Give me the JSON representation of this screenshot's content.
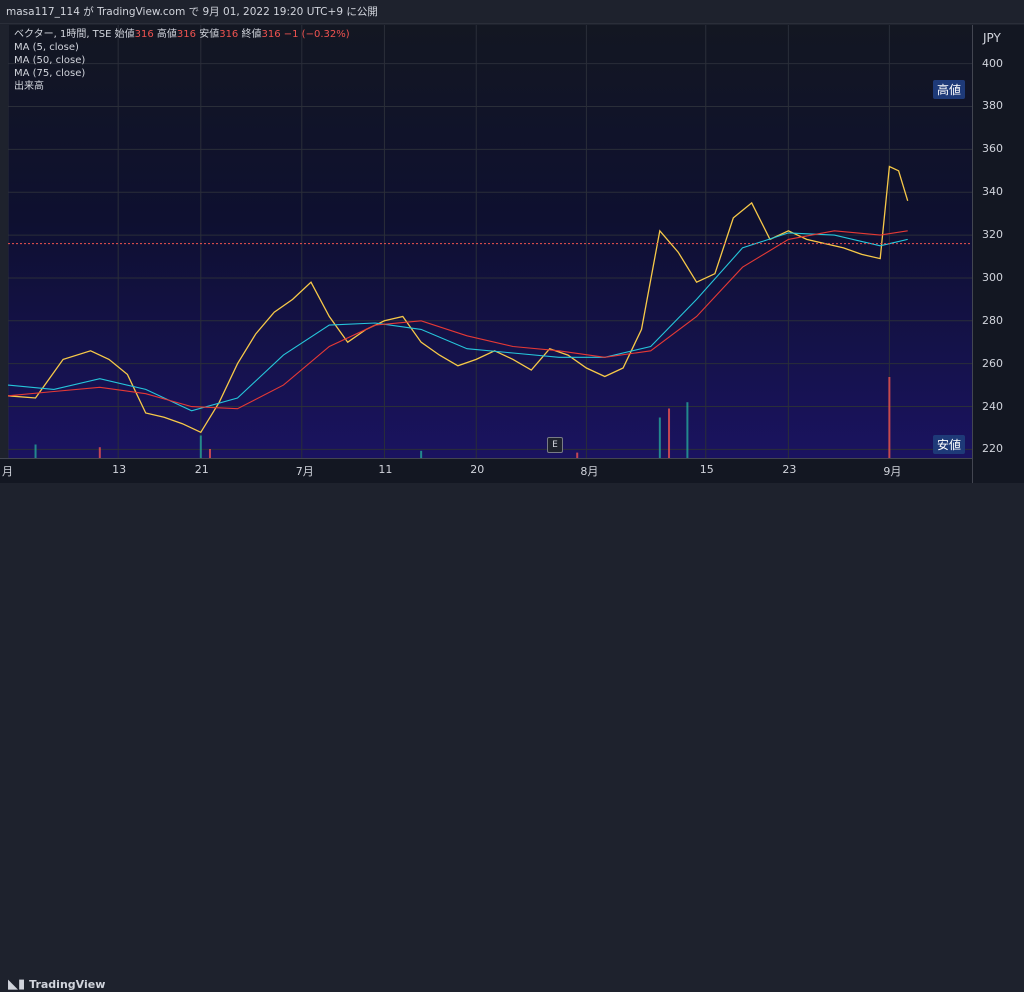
{
  "header": {
    "text": "masa117_114 が TradingView.com で 9月 01, 2022 19:20 UTC+9 に公開"
  },
  "legend": {
    "symbol_line_prefix": "ベクター, 1時間, TSE",
    "open_label": "始値",
    "open_value": "316",
    "high_label": "高値",
    "high_value": "316",
    "low_label": "安値",
    "low_value": "316",
    "close_label": "終値",
    "close_value": "316",
    "change": "−1 (−0.32%)",
    "ma5": "MA (5, close)",
    "ma50": "MA (50, close)",
    "ma75": "MA (75, close)",
    "volume": "出来高"
  },
  "price_axis": {
    "currency": "JPY",
    "ticks": [
      "400",
      "380",
      "360",
      "340",
      "320",
      "300",
      "280",
      "260",
      "240",
      "220"
    ]
  },
  "time_axis": {
    "labels": [
      "月",
      "13",
      "21",
      "7月",
      "11",
      "20",
      "8月",
      "15",
      "23",
      "9月"
    ]
  },
  "tags": {
    "high": "高値",
    "low": "安値"
  },
  "earnings_badge": "E",
  "footer": {
    "brand": "TradingView"
  },
  "colors": {
    "ma5": "#f7c948",
    "ma50": "#26c6da",
    "ma75": "#e53935",
    "up": "#26a69a",
    "down": "#ef5350"
  },
  "chart_data": {
    "type": "line",
    "title": "ベクター, 1時間, TSE",
    "ylabel": "JPY",
    "ylim": [
      216,
      418
    ],
    "x_range": [
      0,
      105
    ],
    "x_tick_labels": [
      "月",
      "13",
      "21",
      "7月",
      "11",
      "20",
      "8月",
      "15",
      "23",
      "9月"
    ],
    "x_tick_positions": [
      0,
      12,
      21,
      32,
      41,
      51,
      63,
      76,
      85,
      96
    ],
    "series": [
      {
        "name": "MA (5, close)",
        "x": [
          0,
          3,
          6,
          9,
          11,
          13,
          15,
          17,
          19,
          21,
          23,
          25,
          27,
          29,
          31,
          33,
          35,
          37,
          39,
          41,
          43,
          45,
          47,
          49,
          51,
          53,
          55,
          57,
          59,
          61,
          63,
          65,
          67,
          69,
          71,
          73,
          75,
          77,
          79,
          81,
          83,
          85,
          87,
          89,
          91,
          93,
          95,
          96,
          97,
          98
        ],
        "values": [
          245,
          244,
          262,
          266,
          262,
          255,
          237,
          235,
          232,
          228,
          242,
          260,
          274,
          284,
          290,
          298,
          282,
          270,
          276,
          280,
          282,
          270,
          264,
          259,
          262,
          266,
          262,
          257,
          267,
          264,
          258,
          254,
          258,
          276,
          322,
          312,
          298,
          302,
          328,
          335,
          318,
          322,
          318,
          316,
          314,
          311,
          309,
          352,
          350,
          336
        ]
      },
      {
        "name": "MA (50, close)",
        "x": [
          0,
          5,
          10,
          15,
          20,
          25,
          30,
          35,
          40,
          45,
          50,
          55,
          60,
          65,
          70,
          75,
          80,
          85,
          90,
          95,
          98
        ],
        "values": [
          250,
          248,
          253,
          248,
          238,
          244,
          264,
          278,
          279,
          276,
          267,
          265,
          263,
          263,
          268,
          290,
          314,
          321,
          320,
          315,
          318
        ]
      },
      {
        "name": "MA (75, close)",
        "x": [
          0,
          5,
          10,
          15,
          20,
          25,
          30,
          35,
          40,
          45,
          50,
          55,
          60,
          65,
          70,
          75,
          80,
          85,
          90,
          95,
          98
        ],
        "values": [
          245,
          247,
          249,
          246,
          240,
          239,
          250,
          268,
          278,
          280,
          273,
          268,
          266,
          263,
          266,
          282,
          305,
          318,
          322,
          320,
          322
        ]
      }
    ],
    "volume": {
      "x": [
        3,
        10,
        21,
        22,
        45,
        62,
        71,
        72,
        74,
        96
      ],
      "values": [
        0.15,
        0.12,
        0.25,
        0.1,
        0.08,
        0.06,
        0.45,
        0.55,
        0.62,
        0.9
      ]
    }
  }
}
